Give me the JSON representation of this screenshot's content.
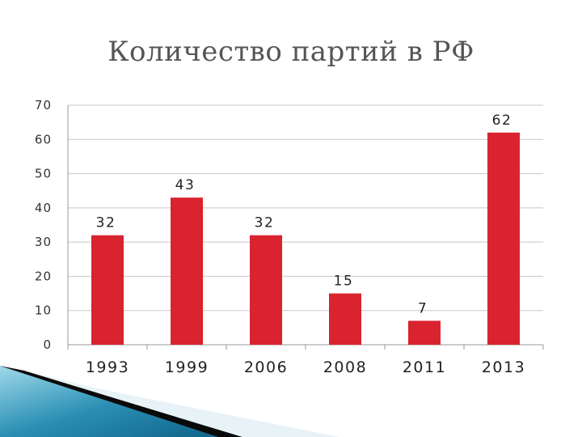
{
  "title": "Количество партий в РФ",
  "colors": {
    "bar": "#d9232e",
    "grid": "#c8c8c8",
    "axis": "#999999"
  },
  "chart_data": {
    "type": "bar",
    "title": "Количество партий в РФ",
    "xlabel": "",
    "ylabel": "",
    "categories": [
      "1993",
      "1999",
      "2006",
      "2008",
      "2011",
      "2013"
    ],
    "values": [
      32,
      43,
      32,
      15,
      7,
      62
    ],
    "data_labels": [
      "32",
      "43",
      "32",
      "15",
      "7",
      "62"
    ],
    "ylim": [
      0,
      70
    ],
    "yticks": [
      "0",
      "10",
      "20",
      "30",
      "40",
      "50",
      "60",
      "70"
    ],
    "grid": true,
    "legend": "none"
  }
}
